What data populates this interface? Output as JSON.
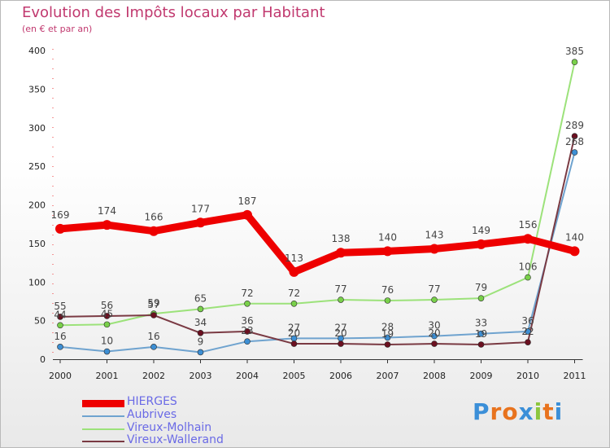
{
  "title": "Evolution des Impôts locaux par Habitant",
  "subtitle": "(en € et par an)",
  "brand": {
    "letters": [
      "P",
      "r",
      "o",
      "x",
      "i",
      "t",
      "i"
    ],
    "colors": [
      "#3b8fd8",
      "#e8731e",
      "#e8731e",
      "#3b8fd8",
      "#8cc63e",
      "#e8731e",
      "#3b8fd8"
    ]
  },
  "chart_data": {
    "type": "line",
    "title": "Evolution des Impôts locaux par Habitant",
    "subtitle": "(en € et par an)",
    "x": [
      "2000",
      "2001",
      "2002",
      "2003",
      "2004",
      "2005",
      "2006",
      "2007",
      "2008",
      "2009",
      "2010",
      "2011"
    ],
    "ylim": [
      0,
      400
    ],
    "yticks": [
      0,
      50,
      100,
      150,
      200,
      250,
      300,
      350,
      400
    ],
    "grid": false,
    "legend_position": "bottom-left",
    "series": [
      {
        "name": "HIERGES",
        "color": "#ee0000",
        "marker": "#ee0000",
        "values": [
          169,
          174,
          166,
          177,
          187,
          113,
          138,
          140,
          143,
          149,
          156,
          140
        ],
        "labels": [
          "169",
          "174",
          "166",
          "177",
          "187",
          "113",
          "138",
          "140",
          "143",
          "149",
          "156",
          "140"
        ]
      },
      {
        "name": "Aubrives",
        "color": "#6fa3cf",
        "marker": "#3d8fd4",
        "values": [
          16,
          10,
          16,
          9,
          23,
          27,
          27,
          28,
          30,
          33,
          36,
          268
        ],
        "labels": [
          "16",
          "10",
          "16",
          "9",
          "23",
          "27",
          "27",
          "28",
          "30",
          "33",
          "36",
          "268"
        ]
      },
      {
        "name": "Vireux-Molhain",
        "color": "#9ce27a",
        "marker": "#79d04a",
        "values": [
          44,
          45,
          59,
          65,
          72,
          72,
          77,
          76,
          77,
          79,
          106,
          385
        ],
        "labels": [
          "44",
          "45",
          "59",
          "65",
          "72",
          "72",
          "77",
          "76",
          "77",
          "79",
          "106",
          "385"
        ]
      },
      {
        "name": "Vireux-Wallerand",
        "color": "#7a3a43",
        "marker": "#6b1020",
        "values": [
          55,
          56,
          57,
          34,
          36,
          20,
          20,
          19,
          20,
          19,
          22,
          289
        ],
        "labels": [
          "55",
          "56",
          "57",
          "34",
          "36",
          "20",
          "20",
          "19",
          "20",
          "19",
          "22",
          "289"
        ]
      }
    ]
  }
}
